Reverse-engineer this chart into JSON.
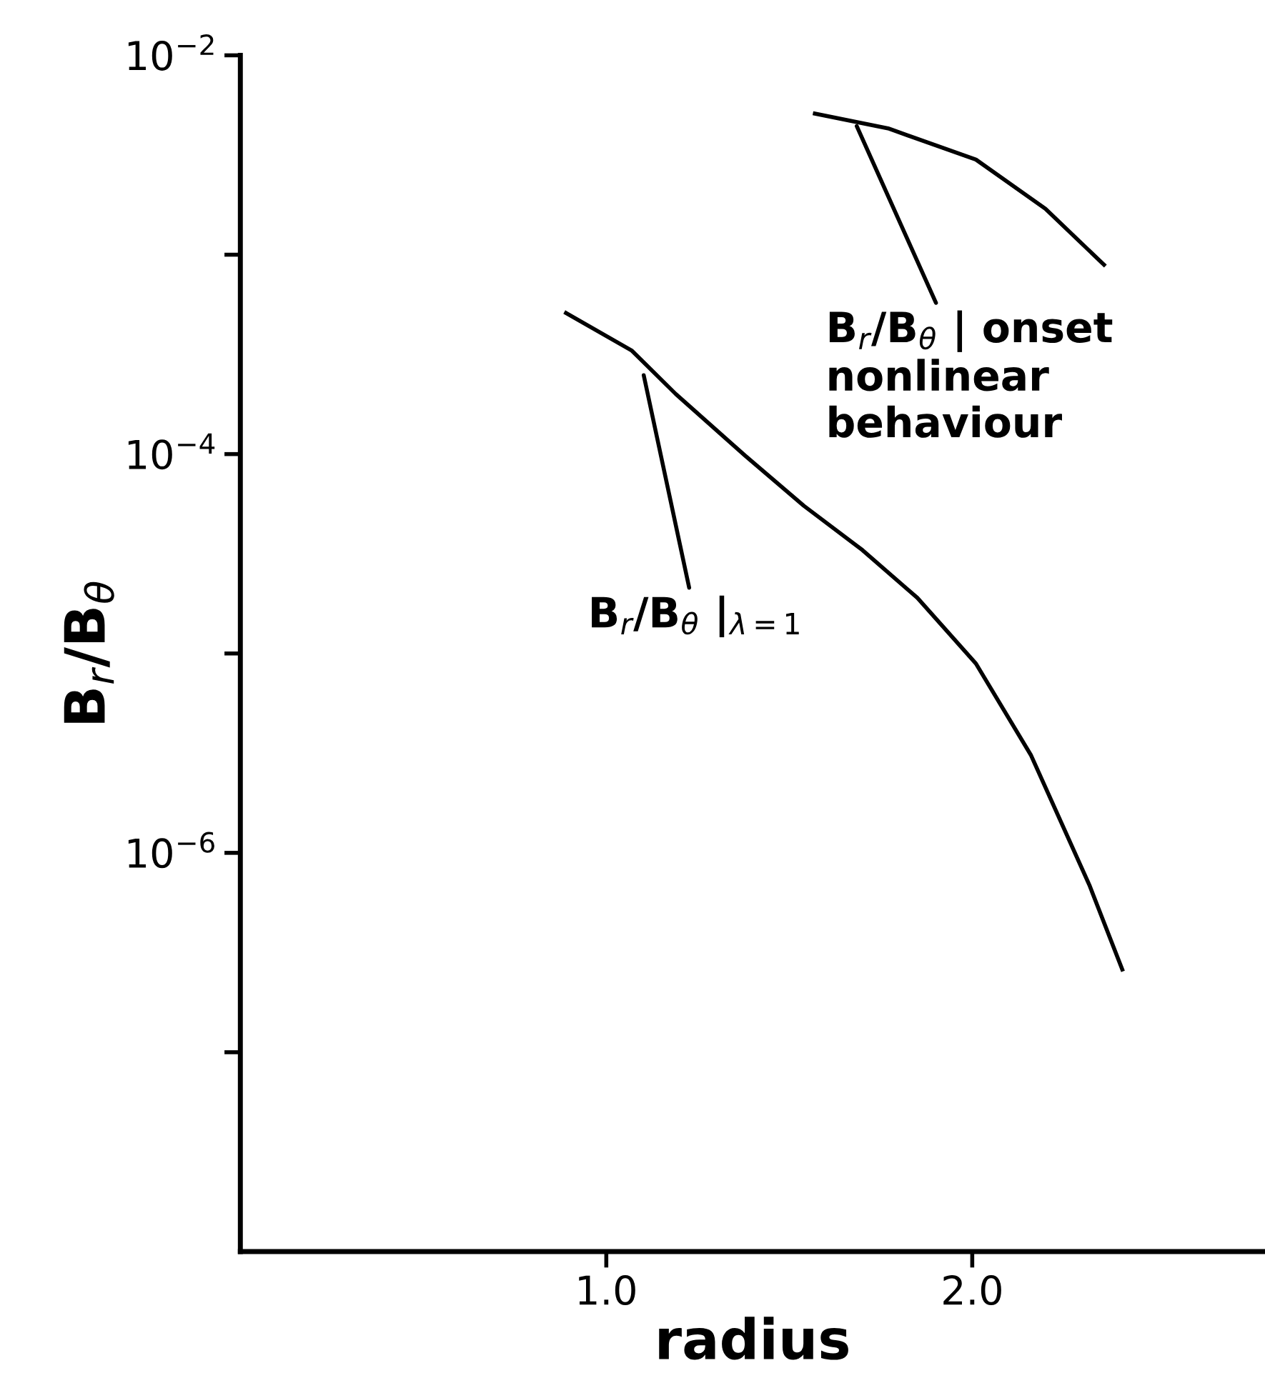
{
  "chart_data": {
    "type": "line",
    "xlabel": "radius",
    "ylabel": "B$_{r}$/B$_{θ}$",
    "log": "y",
    "xlim": [
      0,
      2.8
    ],
    "xticks": [
      {
        "value": 1,
        "label": "1.0"
      },
      {
        "value": 2,
        "label": "2.0"
      }
    ],
    "ylim": [
      1e-08,
      0.01
    ],
    "yticks": [
      {
        "value": 0.01,
        "label": "10$^{−2}$"
      },
      {
        "value": 0.001,
        "label": null
      },
      {
        "value": 0.0001,
        "label": "10$^{−4}$"
      },
      {
        "value": 1e-05,
        "label": null
      },
      {
        "value": 1e-06,
        "label": "10$^{−6}$"
      },
      {
        "value": 1e-07,
        "label": null
      }
    ],
    "grid": false,
    "legend": false,
    "marker": "none",
    "line_style": "solid",
    "series": [
      {
        "color": "#000000",
        "x": [
          0.89,
          1.07,
          1.19,
          1.38,
          1.54,
          1.7,
          1.85,
          2.01,
          2.16,
          2.32,
          2.41
        ],
        "values": [
          0.00051,
          0.00033,
          0.0002,
          9.8e-05,
          5.5e-05,
          3.3e-05,
          1.9e-05,
          8.9e-06,
          3.1e-06,
          6.9e-07,
          2.6e-07
        ]
      },
      {
        "color": "#000000",
        "x": [
          1.57,
          1.77,
          2.01,
          2.2,
          2.36
        ],
        "values": [
          0.0051,
          0.0043,
          0.003,
          0.0017,
          0.00089
        ]
      }
    ],
    "annotations": [
      {
        "text": "B$_{r}$/B$_{θ}$ |$_{λ=1}$",
        "x": 1.1,
        "y": 0.00026
      },
      {
        "text": "B$_{r}$/B$_{θ}$ | onset\nnonlinear\nbehaviour",
        "x": 1.68,
        "y": 0.0046
      }
    ]
  }
}
